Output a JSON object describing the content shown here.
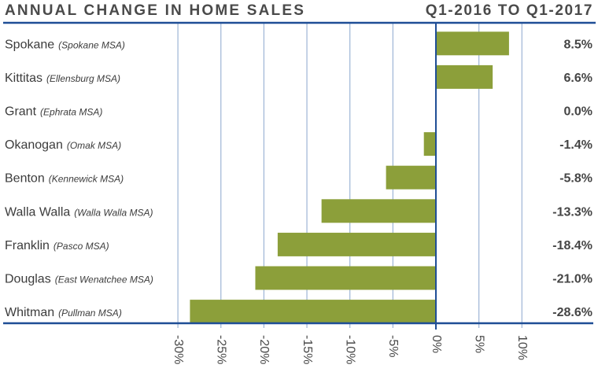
{
  "header": {
    "title": "ANNUAL CHANGE IN HOME SALES",
    "period": "Q1-2016 TO Q1-2017"
  },
  "colors": {
    "bar": "#8c9f3a",
    "axis": "#1f4e96",
    "grid": "#9db5d6",
    "text": "#4a4a4a"
  },
  "chart_data": {
    "type": "bar",
    "orientation": "horizontal",
    "title": "ANNUAL CHANGE IN HOME SALES",
    "subtitle": "Q1-2016 TO Q1-2017",
    "categories": [
      {
        "name": "Spokane",
        "sub": "(Spokane MSA)"
      },
      {
        "name": "Kittitas",
        "sub": "(Ellensburg MSA)"
      },
      {
        "name": "Grant",
        "sub": "(Ephrata MSA)"
      },
      {
        "name": "Okanogan",
        "sub": "(Omak MSA)"
      },
      {
        "name": "Benton",
        "sub": "(Kennewick MSA)"
      },
      {
        "name": "Walla Walla",
        "sub": "(Walla Walla MSA)"
      },
      {
        "name": "Franklin",
        "sub": "(Pasco MSA)"
      },
      {
        "name": "Douglas",
        "sub": "(East Wenatchee MSA)"
      },
      {
        "name": "Whitman",
        "sub": "(Pullman MSA)"
      }
    ],
    "values": [
      8.5,
      6.6,
      0.0,
      -1.4,
      -5.8,
      -13.3,
      -18.4,
      -21.0,
      -28.6
    ],
    "value_labels": [
      "8.5%",
      "6.6%",
      "0.0%",
      "-1.4%",
      "-5.8%",
      "-13.3%",
      "-18.4%",
      "-21.0%",
      "-28.6%"
    ],
    "xlabel": "",
    "ylabel": "",
    "xlim": [
      -30,
      10
    ],
    "xticks": [
      -30,
      -25,
      -20,
      -15,
      -10,
      -5,
      0,
      5,
      10
    ],
    "xtick_labels": [
      "-30%",
      "-25%",
      "-20%",
      "-15%",
      "-10%",
      "-5%",
      "0%",
      "5%",
      "10%"
    ],
    "grid": true,
    "legend": "none"
  }
}
